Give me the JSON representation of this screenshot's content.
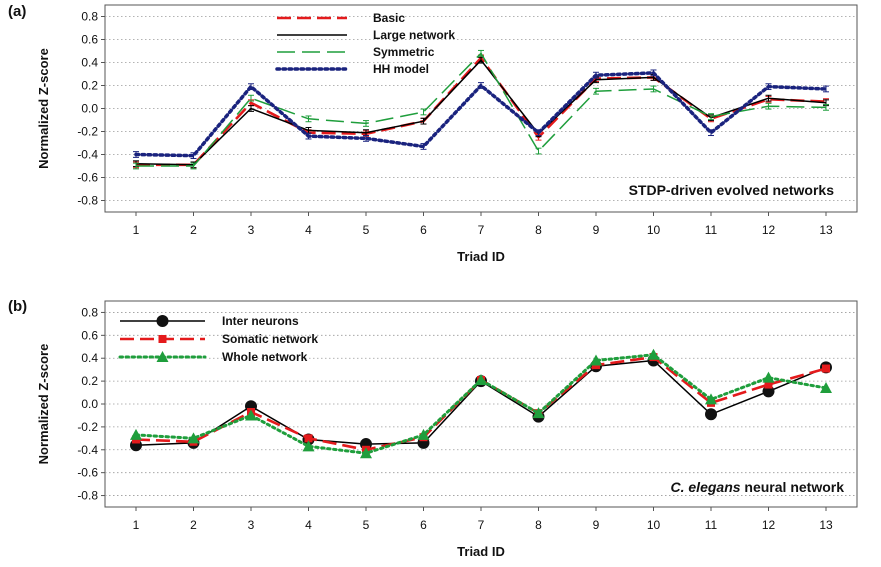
{
  "chart_data": [
    {
      "type": "line",
      "panel_label": "(a)",
      "annotation": "STDP-driven evolved networks",
      "xlabel": "Triad ID",
      "ylabel": "Normalized Z-score",
      "x": [
        1,
        2,
        3,
        4,
        5,
        6,
        7,
        8,
        9,
        10,
        11,
        12,
        13
      ],
      "xticks": [
        "1",
        "2",
        "3",
        "4",
        "5",
        "6",
        "7",
        "8",
        "9",
        "10",
        "11",
        "12",
        "13"
      ],
      "ylim": [
        -0.9,
        0.9
      ],
      "yticks": [
        "0.8",
        "0.6",
        "0.4",
        "0.2",
        "0.0",
        "-0.2",
        "-0.4",
        "-0.6",
        "-0.8"
      ],
      "grid": "horizontal dotted",
      "legend": "top-left",
      "series": [
        {
          "name": "Basic",
          "color": "#e41a1c",
          "style": "dashed",
          "error_bars": true,
          "values": [
            -0.49,
            -0.49,
            0.05,
            -0.21,
            -0.22,
            -0.11,
            0.44,
            -0.25,
            0.26,
            0.27,
            -0.09,
            0.08,
            0.06
          ]
        },
        {
          "name": "Large network",
          "color": "#000000",
          "style": "solid",
          "error_bars": true,
          "values": [
            -0.48,
            -0.49,
            0.0,
            -0.19,
            -0.21,
            -0.11,
            0.42,
            -0.22,
            0.25,
            0.27,
            -0.08,
            0.09,
            0.05
          ]
        },
        {
          "name": "Symmetric",
          "color": "#1f9e3c",
          "style": "long-dashed",
          "error_bars": true,
          "values": [
            -0.5,
            -0.5,
            0.09,
            -0.09,
            -0.13,
            -0.03,
            0.48,
            -0.37,
            0.15,
            0.17,
            -0.07,
            0.02,
            0.01
          ]
        },
        {
          "name": "HH model",
          "color": "#1a237e",
          "style": "dotted",
          "error_bars": true,
          "values": [
            -0.4,
            -0.41,
            0.19,
            -0.24,
            -0.26,
            -0.33,
            0.2,
            -0.21,
            0.29,
            0.31,
            -0.21,
            0.19,
            0.17
          ]
        }
      ]
    },
    {
      "type": "line",
      "panel_label": "(b)",
      "annotation_italic": "C. elegans",
      "annotation_rest": "neural network",
      "xlabel": "Triad ID",
      "ylabel": "Normalized Z-score",
      "x": [
        1,
        2,
        3,
        4,
        5,
        6,
        7,
        8,
        9,
        10,
        11,
        12,
        13
      ],
      "xticks": [
        "1",
        "2",
        "3",
        "4",
        "5",
        "6",
        "7",
        "8",
        "9",
        "10",
        "11",
        "12",
        "13"
      ],
      "ylim": [
        -0.9,
        0.9
      ],
      "yticks": [
        "0.8",
        "0.6",
        "0.4",
        "0.2",
        "0.0",
        "-0.2",
        "-0.4",
        "-0.6",
        "-0.8"
      ],
      "grid": "horizontal dotted",
      "legend": "top-left",
      "series": [
        {
          "name": "Inter neurons",
          "color": "#000000",
          "style": "solid",
          "marker": "circle",
          "values": [
            -0.36,
            -0.34,
            -0.02,
            -0.31,
            -0.35,
            -0.34,
            0.2,
            -0.11,
            0.33,
            0.38,
            -0.09,
            0.11,
            0.32
          ]
        },
        {
          "name": "Somatic network",
          "color": "#e41a1c",
          "style": "dashed",
          "marker": "square",
          "values": [
            -0.31,
            -0.33,
            -0.07,
            -0.3,
            -0.4,
            -0.29,
            0.21,
            -0.08,
            0.34,
            0.41,
            0.01,
            0.17,
            0.31
          ]
        },
        {
          "name": "Whole network",
          "color": "#1f9e3c",
          "style": "dotted",
          "marker": "triangle",
          "values": [
            -0.27,
            -0.3,
            -0.1,
            -0.37,
            -0.43,
            -0.27,
            0.21,
            -0.08,
            0.38,
            0.43,
            0.04,
            0.23,
            0.14
          ]
        }
      ]
    }
  ]
}
